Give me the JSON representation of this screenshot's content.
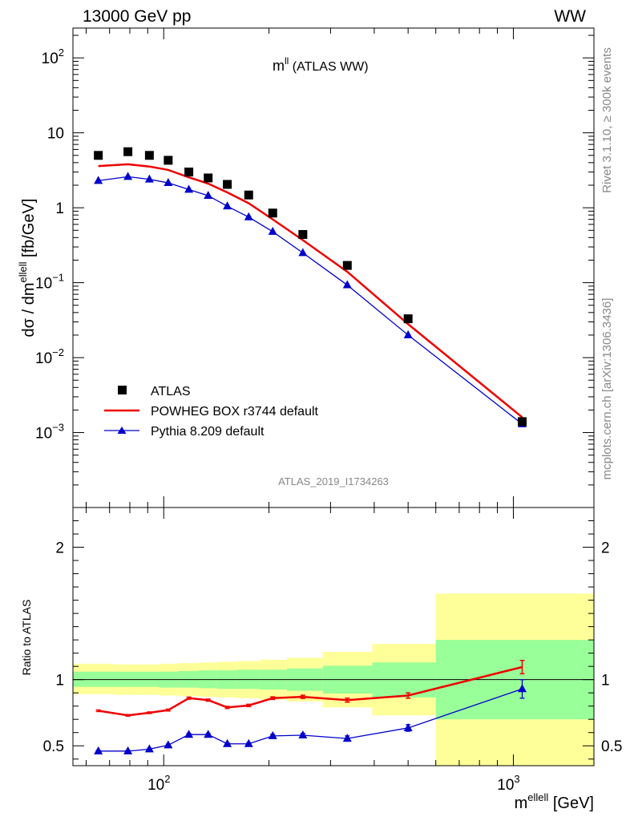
{
  "header": {
    "left": "13000 GeV pp",
    "right": "WW"
  },
  "side_labels": {
    "top": "Rivet 3.1.10, ≥ 300k events",
    "bottom": "mcplots.cern.ch [arXiv:1306.3436]"
  },
  "watermark": "ATLAS_2019_I1734263",
  "chart_data": [
    {
      "type": "line",
      "title": {
        "main": "m",
        "sup": "ll",
        "rest": " (ATLAS WW)"
      },
      "ylabel": {
        "pre": "dσ / dm",
        "sup": "ellell",
        "post": " [fb/GeV]"
      },
      "xscale": "log",
      "yscale": "log",
      "xlim": [
        55,
        1700
      ],
      "ylim": [
        0.0001,
        250
      ],
      "ytick_labels": [
        {
          "value": 0.001,
          "base": "10",
          "exp": "−3"
        },
        {
          "value": 0.01,
          "base": "10",
          "exp": "−2"
        },
        {
          "value": 0.1,
          "base": "10",
          "exp": "−1"
        },
        {
          "value": 1,
          "base": "1",
          "exp": ""
        },
        {
          "value": 10,
          "base": "10",
          "exp": ""
        },
        {
          "value": 100,
          "base": "10",
          "exp": "2"
        }
      ],
      "legend_position": "bottom-left",
      "legend": [
        {
          "name": "ATLAS",
          "marker": "square",
          "color": "#000000"
        },
        {
          "name": "POWHEG BOX r3744 default",
          "marker": "line",
          "color": "#ee0000"
        },
        {
          "name": "Pythia 8.209 default",
          "marker": "triangle",
          "color": "#0000cc"
        }
      ],
      "x": [
        65,
        79,
        91,
        103,
        118,
        134,
        152,
        175,
        205,
        250,
        335,
        500,
        1060
      ],
      "series": [
        {
          "name": "ATLAS",
          "color": "#000000",
          "style": "square",
          "values": [
            5.0,
            5.6,
            5.0,
            4.3,
            3.0,
            2.5,
            2.05,
            1.48,
            0.85,
            0.44,
            0.17,
            0.033,
            0.0014
          ]
        },
        {
          "name": "POWHEG BOX r3744 default",
          "color": "#ee0000",
          "style": "line",
          "values": [
            3.6,
            3.8,
            3.55,
            3.2,
            2.55,
            2.1,
            1.6,
            1.15,
            0.7,
            0.37,
            0.14,
            0.028,
            0.0016
          ]
        },
        {
          "name": "Pythia 8.209 default",
          "color": "#0000cc",
          "style": "triangle",
          "values": [
            2.3,
            2.6,
            2.4,
            2.15,
            1.75,
            1.45,
            1.05,
            0.75,
            0.48,
            0.25,
            0.093,
            0.02,
            0.0013
          ]
        }
      ]
    },
    {
      "type": "line",
      "ylabel": "Ratio to ATLAS",
      "xlabel": {
        "pre": "m",
        "sup": "ellell",
        "post": " [GeV]"
      },
      "xscale": "log",
      "xlim": [
        55,
        1700
      ],
      "ylim": [
        0.35,
        2.3
      ],
      "ytick_labels": [
        {
          "value": 0.5,
          "label": "0.5"
        },
        {
          "value": 1,
          "label": "1"
        },
        {
          "value": 2,
          "label": "2"
        }
      ],
      "xtick_labels": [
        {
          "value": 100,
          "base": "10",
          "exp": "2"
        },
        {
          "value": 1000,
          "base": "10",
          "exp": "3"
        }
      ],
      "reference_line": 1,
      "bands": [
        {
          "x0": 55,
          "x1": 72,
          "yellow": [
            0.89,
            1.12
          ],
          "green": [
            0.945,
            1.06
          ]
        },
        {
          "x0": 72,
          "x1": 85,
          "yellow": [
            0.885,
            1.115
          ],
          "green": [
            0.945,
            1.06
          ]
        },
        {
          "x0": 85,
          "x1": 97,
          "yellow": [
            0.885,
            1.115
          ],
          "green": [
            0.945,
            1.06
          ]
        },
        {
          "x0": 97,
          "x1": 110,
          "yellow": [
            0.88,
            1.12
          ],
          "green": [
            0.94,
            1.06
          ]
        },
        {
          "x0": 110,
          "x1": 126,
          "yellow": [
            0.875,
            1.125
          ],
          "green": [
            0.94,
            1.065
          ]
        },
        {
          "x0": 126,
          "x1": 142,
          "yellow": [
            0.87,
            1.13
          ],
          "green": [
            0.935,
            1.07
          ]
        },
        {
          "x0": 142,
          "x1": 162,
          "yellow": [
            0.865,
            1.135
          ],
          "green": [
            0.93,
            1.07
          ]
        },
        {
          "x0": 162,
          "x1": 188,
          "yellow": [
            0.86,
            1.14
          ],
          "green": [
            0.93,
            1.075
          ]
        },
        {
          "x0": 188,
          "x1": 225,
          "yellow": [
            0.85,
            1.15
          ],
          "green": [
            0.925,
            1.075
          ]
        },
        {
          "x0": 225,
          "x1": 285,
          "yellow": [
            0.835,
            1.165
          ],
          "green": [
            0.915,
            1.085
          ]
        },
        {
          "x0": 285,
          "x1": 395,
          "yellow": [
            0.79,
            1.21
          ],
          "green": [
            0.895,
            1.105
          ]
        },
        {
          "x0": 395,
          "x1": 600,
          "yellow": [
            0.73,
            1.27
          ],
          "green": [
            0.865,
            1.13
          ]
        },
        {
          "x0": 600,
          "x1": 1700,
          "yellow": [
            0.35,
            1.65
          ],
          "green": [
            0.7,
            1.3
          ]
        }
      ],
      "x": [
        65,
        79,
        91,
        103,
        118,
        134,
        152,
        175,
        205,
        250,
        335,
        500,
        1060
      ],
      "series": [
        {
          "name": "POWHEG BOX r3744 default",
          "color": "#ee0000",
          "style": "line",
          "values": [
            0.765,
            0.73,
            0.75,
            0.77,
            0.86,
            0.845,
            0.79,
            0.805,
            0.86,
            0.87,
            0.845,
            0.88,
            1.095
          ],
          "errors": [
            0.006,
            0.006,
            0.006,
            0.007,
            0.008,
            0.008,
            0.008,
            0.009,
            0.01,
            0.012,
            0.015,
            0.02,
            0.05
          ]
        },
        {
          "name": "Pythia 8.209 default",
          "color": "#0000cc",
          "style": "triangle",
          "values": [
            0.46,
            0.46,
            0.475,
            0.505,
            0.585,
            0.585,
            0.515,
            0.515,
            0.575,
            0.58,
            0.555,
            0.635,
            0.93
          ],
          "errors": [
            0.006,
            0.006,
            0.006,
            0.008,
            0.008,
            0.008,
            0.008,
            0.008,
            0.012,
            0.014,
            0.02,
            0.025,
            0.07
          ]
        }
      ]
    }
  ]
}
